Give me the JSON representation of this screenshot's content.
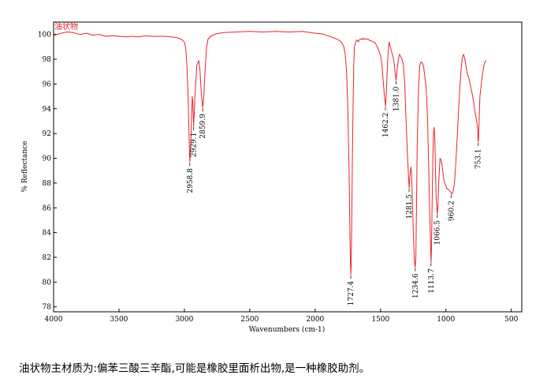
{
  "chart_data": {
    "type": "line",
    "title": "油状物",
    "xlabel": "Wavenumbers (cm-1)",
    "ylabel": "% Reflectance",
    "xlim": [
      4000,
      420
    ],
    "ylim": [
      77.6,
      101.0
    ],
    "x_ticks": [
      4000,
      3500,
      3000,
      2500,
      2000,
      1500,
      1000,
      500
    ],
    "y_ticks": [
      78,
      80,
      82,
      84,
      86,
      88,
      90,
      92,
      94,
      96,
      98,
      100
    ],
    "grid": false,
    "line_color": "#e8232b",
    "series": [
      {
        "x": [
          4000,
          3960,
          3900,
          3850,
          3800,
          3750,
          3700,
          3650,
          3600,
          3550,
          3500,
          3450,
          3400,
          3350,
          3300,
          3250,
          3200,
          3150,
          3100,
          3060,
          3020,
          3000,
          2990,
          2980,
          2970,
          2962,
          2958.8,
          2950,
          2940,
          2935,
          2929.1,
          2920,
          2905,
          2890,
          2880,
          2870,
          2859.9,
          2850,
          2840,
          2830,
          2820,
          2800,
          2780,
          2760,
          2700,
          2600,
          2500,
          2400,
          2300,
          2200,
          2100,
          2000,
          1950,
          1900,
          1850,
          1820,
          1800,
          1780,
          1770,
          1760,
          1750,
          1740,
          1735,
          1730,
          1727.4,
          1724,
          1720,
          1715,
          1710,
          1705,
          1700,
          1690,
          1680,
          1670,
          1660,
          1650,
          1640,
          1630,
          1620,
          1600,
          1580,
          1560,
          1540,
          1520,
          1500,
          1490,
          1480,
          1470,
          1462.2,
          1455,
          1445,
          1435,
          1425,
          1415,
          1405,
          1395,
          1385,
          1381,
          1375,
          1365,
          1355,
          1345,
          1335,
          1325,
          1315,
          1305,
          1295,
          1285,
          1281.5,
          1275,
          1268,
          1262,
          1255,
          1248,
          1242,
          1238,
          1234.6,
          1230,
          1225,
          1220,
          1210,
          1200,
          1190,
          1180,
          1170,
          1160,
          1150,
          1140,
          1130,
          1125,
          1120,
          1116,
          1113.7,
          1110,
          1105,
          1100,
          1095,
          1090,
          1085,
          1080,
          1075,
          1072,
          1069,
          1066.5,
          1062,
          1055,
          1045,
          1035,
          1025,
          1015,
          1005,
          995,
          985,
          975,
          965,
          960.2,
          955,
          945,
          935,
          925,
          915,
          905,
          895,
          885,
          875,
          865,
          855,
          845,
          835,
          825,
          815,
          805,
          795,
          785,
          775,
          765,
          758,
          755,
          753.1,
          750,
          745,
          740,
          730,
          720,
          710,
          700,
          693
        ],
        "y": [
          99.9,
          100.05,
          100.2,
          100.15,
          100.0,
          100.1,
          99.95,
          100.0,
          99.85,
          99.9,
          99.85,
          99.8,
          99.85,
          99.8,
          99.9,
          99.85,
          99.85,
          99.85,
          99.8,
          99.75,
          99.6,
          99.4,
          98.9,
          97.5,
          94.5,
          91.0,
          89.7,
          91.5,
          95.0,
          94.5,
          92.6,
          94.8,
          97.5,
          97.9,
          97.0,
          95.2,
          94.1,
          95.2,
          97.5,
          99.0,
          99.6,
          99.85,
          99.95,
          100.05,
          100.15,
          100.2,
          100.25,
          100.2,
          100.25,
          100.2,
          100.25,
          100.1,
          100.05,
          99.9,
          99.7,
          99.55,
          99.4,
          99.0,
          98.4,
          97.0,
          94.0,
          88.5,
          84.5,
          81.5,
          80.6,
          81.5,
          85.0,
          90.0,
          94.5,
          97.5,
          99.0,
          99.4,
          99.55,
          99.4,
          99.6,
          99.65,
          99.6,
          99.7,
          99.6,
          99.65,
          99.5,
          99.45,
          99.3,
          98.9,
          98.3,
          97.6,
          96.3,
          95.0,
          94.2,
          95.5,
          98.0,
          99.4,
          99.0,
          98.6,
          98.2,
          97.6,
          96.6,
          96.3,
          97.0,
          97.9,
          98.4,
          98.2,
          98.0,
          97.5,
          96.0,
          93.0,
          90.5,
          88.3,
          87.6,
          88.6,
          89.3,
          88.5,
          86.0,
          83.5,
          82.0,
          81.4,
          81.2,
          82.0,
          86.0,
          91.0,
          95.5,
          97.5,
          97.8,
          97.7,
          97.3,
          96.5,
          95.5,
          93.0,
          88.5,
          86.0,
          84.0,
          82.3,
          81.6,
          83.0,
          86.5,
          90.0,
          92.0,
          92.5,
          91.5,
          89.0,
          87.0,
          86.3,
          86.0,
          85.5,
          86.0,
          88.0,
          90.0,
          89.8,
          89.0,
          88.2,
          87.9,
          87.6,
          87.5,
          87.4,
          87.3,
          87.2,
          87.1,
          87.3,
          88.0,
          89.5,
          91.5,
          93.5,
          95.5,
          97.0,
          98.1,
          98.4,
          98.0,
          97.3,
          96.8,
          96.5,
          96.0,
          95.5,
          95.0,
          94.3,
          93.6,
          93.0,
          92.5,
          91.8,
          91.3,
          91.6,
          93.5,
          95.0,
          96.0,
          96.8,
          97.5,
          97.8,
          97.9
        ]
      }
    ],
    "annotations": [
      {
        "x": 2958.8,
        "y": 89.7,
        "label": "2958.8"
      },
      {
        "x": 2929.1,
        "y": 92.6,
        "label": "2929.1"
      },
      {
        "x": 2859.9,
        "y": 94.1,
        "label": "2859.9"
      },
      {
        "x": 1727.4,
        "y": 80.6,
        "label": "1727.4"
      },
      {
        "x": 1462.2,
        "y": 94.2,
        "label": "1462.2"
      },
      {
        "x": 1381.0,
        "y": 96.3,
        "label": "1381.0"
      },
      {
        "x": 1281.5,
        "y": 87.6,
        "label": "1281.5"
      },
      {
        "x": 1234.6,
        "y": 81.2,
        "label": "1234.6"
      },
      {
        "x": 1113.7,
        "y": 81.6,
        "label": "1113.7"
      },
      {
        "x": 1066.5,
        "y": 85.5,
        "label": "1066.5"
      },
      {
        "x": 960.2,
        "y": 87.1,
        "label": "960.2"
      },
      {
        "x": 753.1,
        "y": 91.3,
        "label": "753.1"
      }
    ]
  },
  "caption": "油状物主材质为:偏苯三酸三辛酯,可能是橡胶里面析出物,是一种橡胶助剂。"
}
